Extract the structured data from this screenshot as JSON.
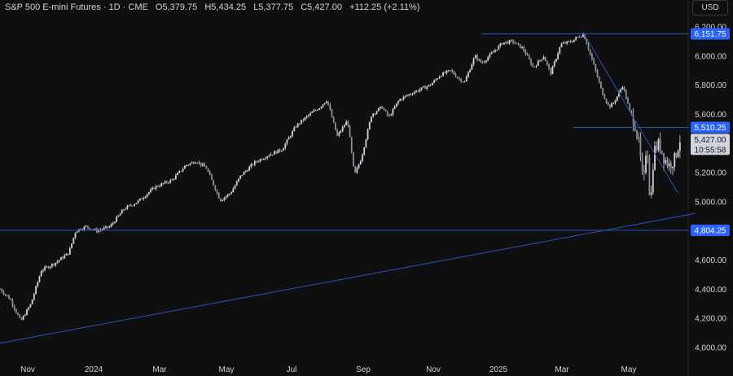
{
  "header": {
    "symbol": "S&P 500 E-mini Futures · 1D · CME",
    "open": "O5,379.75",
    "high": "H5,434.25",
    "low": "L5,377.75",
    "close": "C5,427.00",
    "change": "+112.25 (+2.11%)",
    "currency": "USD"
  },
  "colors": {
    "background": "#0f0f0f",
    "candle": "#d1d4dc",
    "line": "#2e4fb8",
    "tag_blue": "#2962ff",
    "tag_gray": "#d1d4dc"
  },
  "chart_data": {
    "type": "candlestick",
    "x_ticks": [
      "Nov",
      "2024",
      "Mar",
      "May",
      "Jul",
      "Sep",
      "Nov",
      "2025",
      "Mar",
      "May"
    ],
    "y_ticks": [
      "6,200.00",
      "6,000.00",
      "5,800.00",
      "5,600.00",
      "5,400.00",
      "5,200.00",
      "5,000.00",
      "4,800.00",
      "4,600.00",
      "4,400.00",
      "4,200.00",
      "4,000.00"
    ],
    "ylim": [
      4000,
      6200
    ],
    "price_tags": [
      {
        "label": "6,151.75",
        "value": 6151.75,
        "style": "blue"
      },
      {
        "label": "5,510.25",
        "value": 5510.25,
        "style": "blue"
      },
      {
        "label": "5,427.00",
        "value": 5427,
        "style": "gray",
        "countdown": "10:55:58"
      },
      {
        "label": "4,804.25",
        "value": 4804.25,
        "style": "blue"
      }
    ],
    "horizontal_levels": [
      6151.75,
      5510.25,
      4804.25
    ],
    "trendlines": [
      {
        "start": [
          0,
          4030
        ],
        "end": [
          1.01,
          4920
        ]
      },
      {
        "start": [
          0.848,
          6158
        ],
        "end": [
          0.985,
          5060
        ]
      }
    ],
    "close_path": [
      [
        0.0,
        4400
      ],
      [
        0.015,
        4330
      ],
      [
        0.03,
        4180
      ],
      [
        0.045,
        4300
      ],
      [
        0.06,
        4530
      ],
      [
        0.08,
        4580
      ],
      [
        0.1,
        4650
      ],
      [
        0.11,
        4800
      ],
      [
        0.125,
        4830
      ],
      [
        0.14,
        4800
      ],
      [
        0.16,
        4830
      ],
      [
        0.18,
        4950
      ],
      [
        0.2,
        5000
      ],
      [
        0.225,
        5100
      ],
      [
        0.25,
        5150
      ],
      [
        0.27,
        5250
      ],
      [
        0.285,
        5280
      ],
      [
        0.3,
        5230
      ],
      [
        0.32,
        5010
      ],
      [
        0.335,
        5060
      ],
      [
        0.35,
        5180
      ],
      [
        0.37,
        5270
      ],
      [
        0.39,
        5320
      ],
      [
        0.41,
        5360
      ],
      [
        0.43,
        5520
      ],
      [
        0.45,
        5600
      ],
      [
        0.465,
        5650
      ],
      [
        0.475,
        5700
      ],
      [
        0.49,
        5450
      ],
      [
        0.505,
        5560
      ],
      [
        0.515,
        5180
      ],
      [
        0.525,
        5300
      ],
      [
        0.54,
        5600
      ],
      [
        0.555,
        5650
      ],
      [
        0.565,
        5580
      ],
      [
        0.58,
        5700
      ],
      [
        0.6,
        5750
      ],
      [
        0.625,
        5800
      ],
      [
        0.64,
        5870
      ],
      [
        0.655,
        5900
      ],
      [
        0.665,
        5850
      ],
      [
        0.675,
        5820
      ],
      [
        0.69,
        6000
      ],
      [
        0.7,
        5950
      ],
      [
        0.715,
        6020
      ],
      [
        0.73,
        6090
      ],
      [
        0.745,
        6100
      ],
      [
        0.76,
        6050
      ],
      [
        0.775,
        5920
      ],
      [
        0.79,
        6000
      ],
      [
        0.8,
        5880
      ],
      [
        0.815,
        6080
      ],
      [
        0.83,
        6100
      ],
      [
        0.84,
        6130
      ],
      [
        0.848,
        6150
      ],
      [
        0.86,
        5980
      ],
      [
        0.875,
        5750
      ],
      [
        0.885,
        5650
      ],
      [
        0.892,
        5680
      ],
      [
        0.905,
        5800
      ],
      [
        0.915,
        5620
      ],
      [
        0.922,
        5550
      ],
      [
        0.928,
        5400
      ],
      [
        0.935,
        5100
      ],
      [
        0.94,
        5450
      ],
      [
        0.945,
        4950
      ],
      [
        0.95,
        5350
      ],
      [
        0.958,
        5400
      ],
      [
        0.965,
        5300
      ],
      [
        0.972,
        5250
      ],
      [
        0.98,
        5290
      ],
      [
        0.988,
        5427
      ]
    ]
  }
}
